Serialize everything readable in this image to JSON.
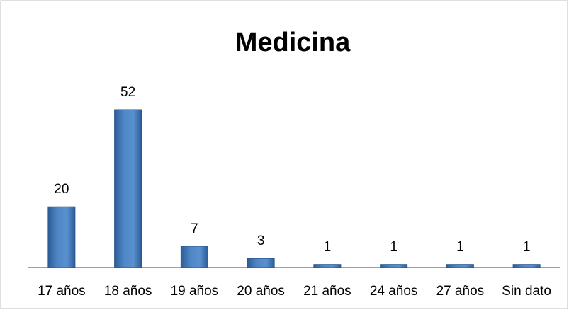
{
  "chart_data": {
    "type": "bar",
    "title": "Medicina",
    "categories": [
      "17 años",
      "18 años",
      "19 años",
      "20 años",
      "21 años",
      "24 años",
      "27 años",
      "Sin dato"
    ],
    "values": [
      20,
      52,
      7,
      3,
      1,
      1,
      1,
      1
    ],
    "color": "#4a7ebb"
  }
}
